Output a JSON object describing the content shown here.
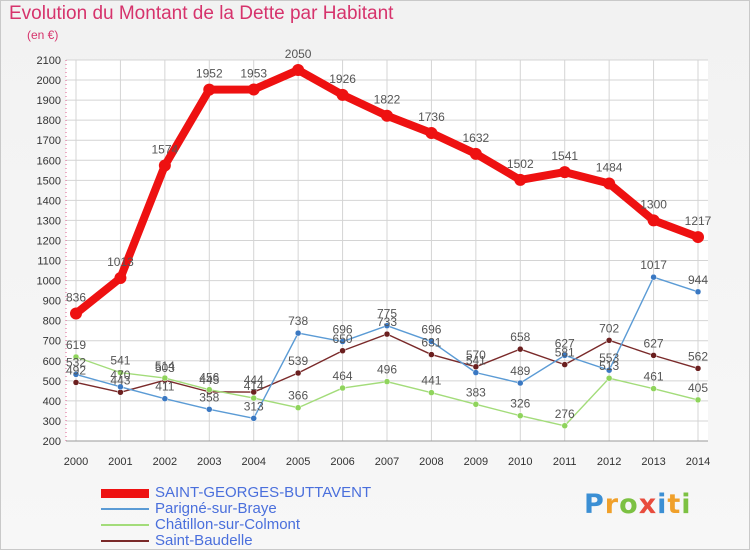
{
  "header": {
    "title": "Evolution du Montant de la Dette par Habitant",
    "unit": "(en €)"
  },
  "logo": {
    "text": "Proxiti",
    "colors": [
      "#3b8fd4",
      "#f0a02a",
      "#7cc142",
      "#e84c3d"
    ]
  },
  "chart_data": {
    "type": "line",
    "title": "Evolution du Montant de la Dette par Habitant",
    "subtitle": "(en €)",
    "x": [
      "2000",
      "2001",
      "2002",
      "2003",
      "2004",
      "2005",
      "2006",
      "2007",
      "2008",
      "2009",
      "2010",
      "2011",
      "2012",
      "2013",
      "2014"
    ],
    "ylim": [
      200,
      2100
    ],
    "yticks": [
      200,
      300,
      400,
      500,
      600,
      700,
      800,
      900,
      1000,
      1100,
      1200,
      1300,
      1400,
      1500,
      1600,
      1700,
      1800,
      1900,
      2000,
      2100
    ],
    "grid": true,
    "legend": "bottom-left",
    "series": [
      {
        "name": "SAINT-GEORGES-BUTTAVENT",
        "color": "#ee1111",
        "marker": "#ee1111",
        "values": [
          836,
          1013,
          1574,
          1952,
          1953,
          2050,
          1926,
          1822,
          1736,
          1632,
          1502,
          1541,
          1484,
          1300,
          1217
        ],
        "labels": [
          "836",
          "1013",
          "1574",
          "1952",
          "1953",
          "2050",
          "1926",
          "1822",
          "1736",
          "1632",
          "1502",
          "1541",
          "1484",
          "1300",
          "1217"
        ]
      },
      {
        "name": "Parigné-sur-Braye",
        "color": "#5b9bd5",
        "marker": "#3a78c2",
        "values": [
          532,
          470,
          411,
          358,
          313,
          738,
          696,
          775,
          696,
          541,
          489,
          627,
          553,
          1017,
          944
        ],
        "labels": [
          "532",
          "470",
          "411",
          "358",
          "313",
          "738",
          "696",
          "775",
          "696",
          "541",
          "489",
          "627",
          "553",
          "1017",
          "944"
        ]
      },
      {
        "name": "Châtillon-sur-Colmont",
        "color": "#a3dc7a",
        "marker": "#8fd45c",
        "values": [
          619,
          541,
          514,
          456,
          414,
          366,
          464,
          496,
          441,
          383,
          326,
          276,
          513,
          461,
          405
        ],
        "labels": [
          "619",
          "541",
          "514",
          "456",
          "414",
          "366",
          "464",
          "496",
          "441",
          "383",
          "326",
          "276",
          "513",
          "461",
          "405"
        ]
      },
      {
        "name": "Saint-Baudelle",
        "color": "#7a2a2a",
        "marker": "#6b1f1f",
        "values": [
          492,
          443,
          503,
          445,
          444,
          539,
          650,
          733,
          631,
          570,
          658,
          581,
          702,
          627,
          562
        ],
        "labels": [
          "492",
          "443",
          "503",
          "445",
          "444",
          "539",
          "650",
          "733",
          "631",
          "570",
          "658",
          "581",
          "702",
          "627",
          "562"
        ]
      }
    ]
  }
}
